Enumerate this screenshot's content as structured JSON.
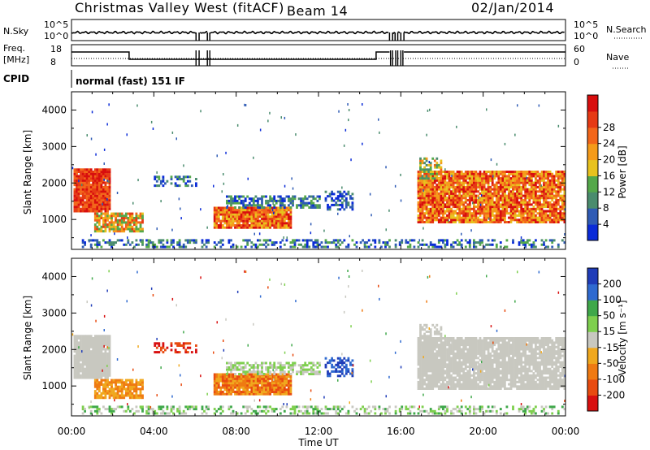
{
  "header": {
    "station": "Christmas Valley West (fitACF)",
    "beam": "Beam 14",
    "date": "02/Jan/2014"
  },
  "status_panel": {
    "nsky_label": "N.Sky",
    "nsky_ticks": [
      "10^5",
      "10^0"
    ],
    "nsearch_label": "N.Search",
    "nsearch_ticks_right": [
      "10^5",
      "10^0"
    ],
    "freq_label": "Freq.",
    "freq_unit": "[MHz]",
    "freq_ticks": [
      "18",
      "8"
    ],
    "nave_label": "Nave",
    "nave_ticks": [
      "60",
      "0"
    ],
    "cpid_label": "CPID",
    "cpid_text": "normal (fast) 151 IF"
  },
  "colors": {
    "power_scale": [
      "#0a2bd8",
      "#2f5bb5",
      "#4a8c6e",
      "#54a84a",
      "#e8c21e",
      "#f59b1a",
      "#f2661a",
      "#e63a14",
      "#d80e0e"
    ],
    "velocity_scale": [
      "#1f3cb8",
      "#2f6ad0",
      "#3fa84a",
      "#7ecf4e",
      "#c8c8c0",
      "#f0a81e",
      "#ef7a12",
      "#e84b10",
      "#d81010"
    ]
  },
  "chart_data": [
    {
      "type": "heatmap",
      "name": "power",
      "ylabel": "Slant Range [km]",
      "y_ticks": [
        "1000",
        "2000",
        "3000",
        "4000"
      ],
      "ylim": [
        180,
        4500
      ],
      "xlim_hours": [
        0,
        24
      ],
      "colorbar_label": "Power [dB]",
      "colorbar_ticks": [
        "4",
        "8",
        "12",
        "16",
        "20",
        "24",
        "28"
      ],
      "x_ticks": [
        "00:00",
        "04:00",
        "08:00",
        "12:00",
        "16:00",
        "20:00",
        "00:00"
      ],
      "xlabel": ""
    },
    {
      "type": "heatmap",
      "name": "velocity",
      "ylabel": "Slant Range [km]",
      "y_ticks": [
        "1000",
        "2000",
        "3000",
        "4000"
      ],
      "ylim": [
        180,
        4500
      ],
      "xlim_hours": [
        0,
        24
      ],
      "colorbar_label": "Velocity [m s⁻¹]",
      "colorbar_ticks": [
        "200",
        "100",
        "50",
        "15",
        "-15",
        "-50",
        "-100",
        "-200"
      ],
      "x_ticks": [
        "00:00",
        "04:00",
        "08:00",
        "12:00",
        "16:00",
        "20:00",
        "00:00"
      ],
      "xlabel": "Time UT"
    }
  ]
}
